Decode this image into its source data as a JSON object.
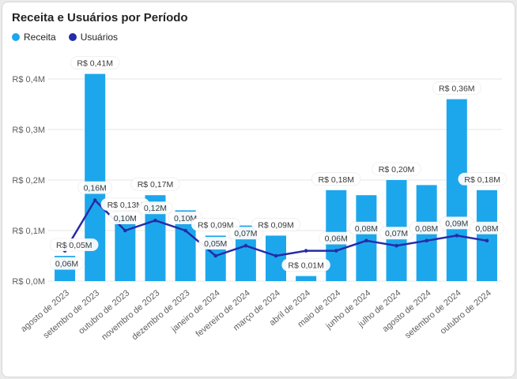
{
  "title": "Receita e Usuários por Período",
  "legend": [
    {
      "label": "Receita",
      "color": "#1CA7EC"
    },
    {
      "label": "Usuários",
      "color": "#252CA8"
    }
  ],
  "colors": {
    "bar": "#1CA7EC",
    "line": "#252CA8",
    "grid": "#E6E6E6",
    "axis_text": "#605E5C",
    "title_text": "#252423",
    "data_label_text": "#3B3A39",
    "data_label_bg": "#FFFFFF",
    "card_border": "#D6D6D6"
  },
  "chart_data": {
    "type": "bar",
    "subtype": "combo-bar-line",
    "title": "Receita e Usuários por Período",
    "categories": [
      "agosto de 2023",
      "setembro de 2023",
      "outubro de 2023",
      "novembro de 2023",
      "dezembro de 2023",
      "janeiro de 2024",
      "fevereiro de 2024",
      "março de 2024",
      "abril de 2024",
      "maio de 2024",
      "junho de 2024",
      "julho de 2024",
      "agosto de 2024",
      "setembro de 2024",
      "outubro de 2024"
    ],
    "series": [
      {
        "name": "Receita",
        "kind": "bar",
        "unit": "R$ M",
        "values": [
          0.05,
          0.41,
          0.13,
          0.17,
          0.14,
          0.09,
          0.11,
          0.09,
          0.01,
          0.18,
          0.17,
          0.2,
          0.19,
          0.36,
          0.18
        ],
        "labels": [
          "R$ 0,05M",
          "R$ 0,41M",
          "R$ 0,13M",
          "R$ 0,17M",
          null,
          "R$ 0,09M",
          null,
          "R$ 0,09M",
          "R$ 0,01M",
          "R$ 0,18M",
          null,
          "R$ 0,20M",
          null,
          "R$ 0,36M",
          "R$ 0,18M"
        ]
      },
      {
        "name": "Usuários",
        "kind": "line",
        "unit": "M",
        "values": [
          0.06,
          0.16,
          0.1,
          0.12,
          0.1,
          0.05,
          0.07,
          0.05,
          0.06,
          0.06,
          0.08,
          0.07,
          0.08,
          0.09,
          0.08
        ],
        "labels": [
          "0,06M",
          "0,16M",
          "0,10M",
          "0,12M",
          "0,10M",
          "0,05M",
          "0,07M",
          null,
          null,
          "0,06M",
          "0,08M",
          "0,07M",
          "0,08M",
          "0,09M",
          "0,08M"
        ]
      }
    ],
    "y_ticks": [
      {
        "value": 0.0,
        "label": "R$ 0,0M"
      },
      {
        "value": 0.1,
        "label": "R$ 0,1M"
      },
      {
        "value": 0.2,
        "label": "R$ 0,2M"
      },
      {
        "value": 0.3,
        "label": "R$ 0,3M"
      },
      {
        "value": 0.4,
        "label": "R$ 0,4M"
      }
    ],
    "ylim": [
      0,
      0.45
    ],
    "xlabel": "",
    "ylabel": "",
    "grid": true,
    "legend_position": "top-left",
    "x_label_rotation_deg": -40
  }
}
